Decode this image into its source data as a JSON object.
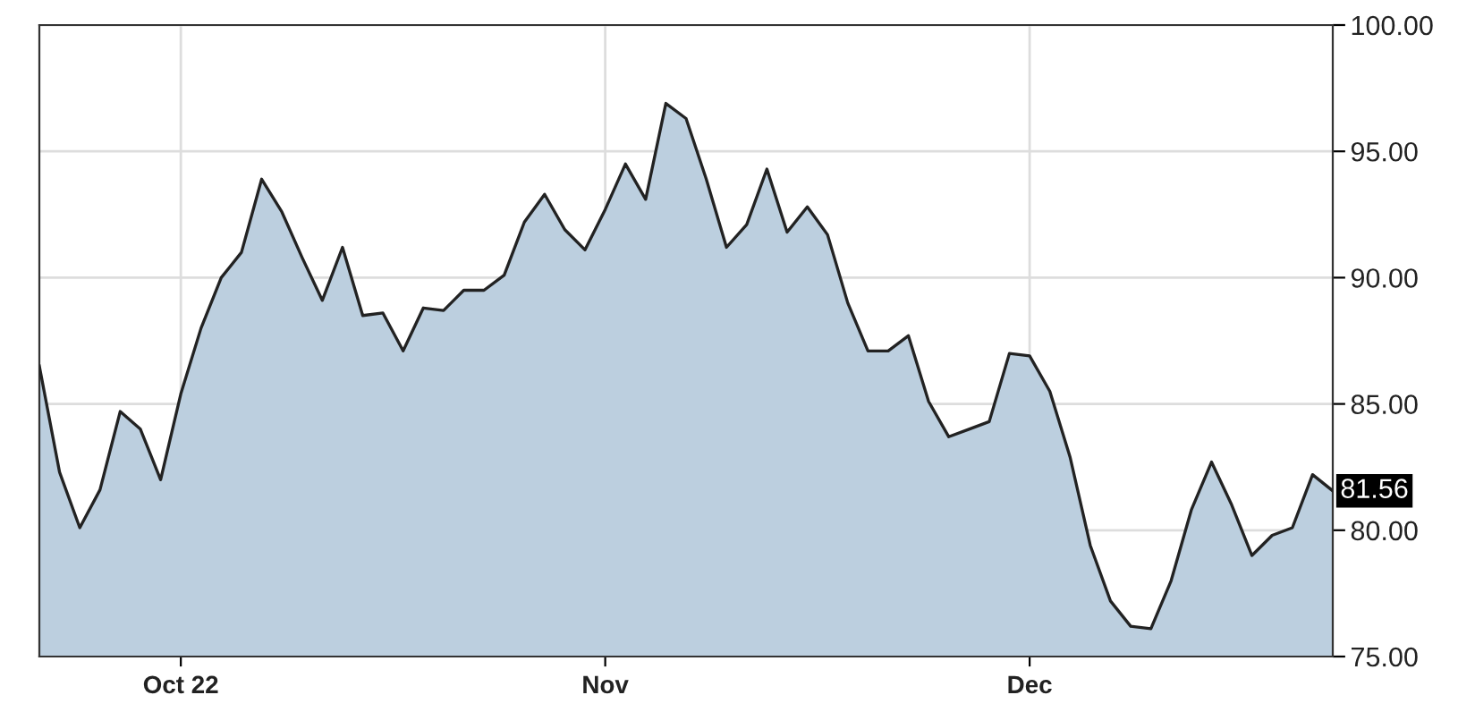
{
  "chart_data": {
    "type": "area",
    "categories": [
      null,
      null,
      null,
      null,
      null,
      null,
      null,
      "Oct 22",
      null,
      null,
      null,
      null,
      null,
      null,
      null,
      null,
      null,
      null,
      null,
      null,
      null,
      null,
      null,
      null,
      null,
      null,
      null,
      null,
      "Nov",
      null,
      null,
      null,
      null,
      null,
      null,
      null,
      null,
      null,
      null,
      null,
      null,
      null,
      null,
      null,
      null,
      null,
      null,
      null,
      null,
      "Dec",
      null,
      null,
      null,
      null,
      null,
      null,
      null,
      null,
      null,
      null,
      null,
      null,
      null,
      null,
      null
    ],
    "series": [
      {
        "color": "#bccfdf",
        "values": [
          86.5,
          82.3,
          80.1,
          81.6,
          84.7,
          84.0,
          82.0,
          85.4,
          88.0,
          90.0,
          91.0,
          93.9,
          92.6,
          90.8,
          89.1,
          91.2,
          88.5,
          88.6,
          87.1,
          88.8,
          88.7,
          89.5,
          89.5,
          90.1,
          92.2,
          93.3,
          91.9,
          91.1,
          92.7,
          94.5,
          93.1,
          96.9,
          96.3,
          93.9,
          91.2,
          92.1,
          94.3,
          91.8,
          92.8,
          91.7,
          89.0,
          87.1,
          87.1,
          87.7,
          85.1,
          83.7,
          84.0,
          84.3,
          87.0,
          86.9,
          85.5,
          82.9,
          79.4,
          77.2,
          76.2,
          76.1,
          78.0,
          80.8,
          82.7,
          81.0,
          79.0,
          79.8,
          80.1,
          82.2,
          81.56
        ]
      }
    ],
    "ylim": [
      75,
      100
    ],
    "yticks": [
      {
        "value": 75,
        "label": "75.00"
      },
      {
        "value": 80,
        "label": "80.00"
      },
      {
        "value": 85,
        "label": "85.00"
      },
      {
        "value": 90,
        "label": "90.00"
      },
      {
        "value": 95,
        "label": "95.00"
      },
      {
        "value": 100,
        "label": "100.00"
      }
    ],
    "grid": true,
    "annotations": [
      {
        "text": "81.56",
        "y": 81.56
      }
    ]
  }
}
